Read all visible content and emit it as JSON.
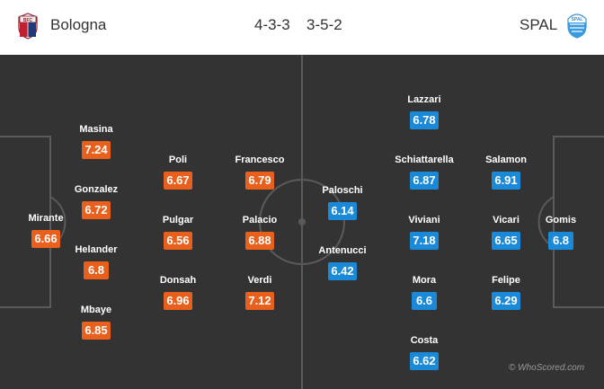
{
  "header": {
    "home_team": "Bologna",
    "away_team": "SPAL",
    "home_formation": "4-3-3",
    "away_formation": "3-5-2",
    "home_badge_icon": "bologna-crest-icon",
    "away_badge_icon": "spal-crest-icon"
  },
  "colors": {
    "pitch": "#333333",
    "lines": "#5a5a5a",
    "home_rating": "#e8601c",
    "away_rating": "#1a8ad8"
  },
  "home_players": [
    {
      "name": "Mirante",
      "rating": "6.66"
    },
    {
      "name": "Masina",
      "rating": "7.24"
    },
    {
      "name": "Gonzalez",
      "rating": "6.72"
    },
    {
      "name": "Helander",
      "rating": "6.8"
    },
    {
      "name": "Mbaye",
      "rating": "6.85"
    },
    {
      "name": "Poli",
      "rating": "6.67"
    },
    {
      "name": "Pulgar",
      "rating": "6.56"
    },
    {
      "name": "Donsah",
      "rating": "6.96"
    },
    {
      "name": "Francesco",
      "rating": "6.79"
    },
    {
      "name": "Palacio",
      "rating": "6.88"
    },
    {
      "name": "Verdi",
      "rating": "7.12"
    }
  ],
  "away_players": [
    {
      "name": "Paloschi",
      "rating": "6.14"
    },
    {
      "name": "Antenucci",
      "rating": "6.42"
    },
    {
      "name": "Lazzari",
      "rating": "6.78"
    },
    {
      "name": "Schiattarella",
      "rating": "6.87"
    },
    {
      "name": "Viviani",
      "rating": "7.18"
    },
    {
      "name": "Mora",
      "rating": "6.6"
    },
    {
      "name": "Costa",
      "rating": "6.62"
    },
    {
      "name": "Salamon",
      "rating": "6.91"
    },
    {
      "name": "Vicari",
      "rating": "6.65"
    },
    {
      "name": "Felipe",
      "rating": "6.29"
    },
    {
      "name": "Gomis",
      "rating": "6.8"
    }
  ],
  "watermark": "© WhoScored.com"
}
